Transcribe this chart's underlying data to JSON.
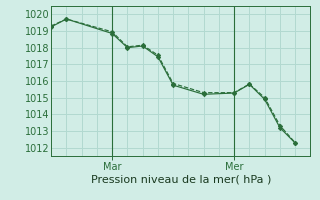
{
  "xlabel": "Pression niveau de la mer( hPa )",
  "bg_color": "#d1ede6",
  "grid_color": "#b2d9d0",
  "line_color": "#2a6e3a",
  "ylim": [
    1011.5,
    1020.5
  ],
  "yticks": [
    1012,
    1013,
    1014,
    1015,
    1016,
    1017,
    1018,
    1019,
    1020
  ],
  "day_labels": [
    "Mar",
    "Mer"
  ],
  "day_positions": [
    8,
    24
  ],
  "series1_x": [
    0,
    2,
    8,
    10,
    12,
    14,
    16,
    20,
    24,
    26,
    28,
    30,
    32
  ],
  "series1_y": [
    1019.3,
    1019.72,
    1018.95,
    1018.05,
    1018.15,
    1017.55,
    1015.85,
    1015.3,
    1015.3,
    1015.82,
    1015.0,
    1013.33,
    1012.3
  ],
  "series2_x": [
    0,
    2,
    8,
    10,
    12,
    14,
    16,
    20,
    24,
    26,
    28,
    30,
    32
  ],
  "series2_y": [
    1019.25,
    1019.72,
    1018.85,
    1018.0,
    1018.1,
    1017.45,
    1015.75,
    1015.2,
    1015.28,
    1015.8,
    1014.9,
    1013.2,
    1012.28
  ],
  "xlim": [
    0,
    34
  ],
  "xlabel_fontsize": 8,
  "tick_fontsize": 7
}
